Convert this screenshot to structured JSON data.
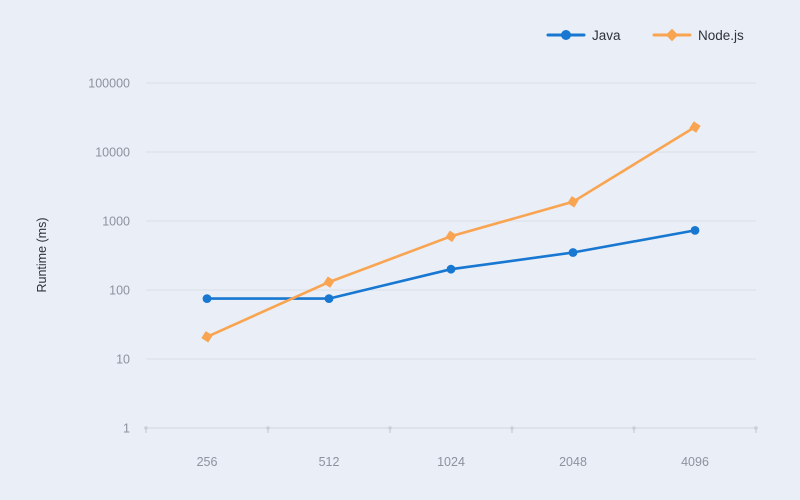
{
  "chart": {
    "background": "#e9eef7",
    "grid_color": "#dde1ea",
    "axis_line_color": "#d6dae4",
    "tick_color": "#c9cedb",
    "axis_label_color": "#8d929e",
    "text_color": "#2e3338",
    "ylabel": "Runtime (ms)"
  },
  "chart_data": {
    "type": "line",
    "title": "",
    "xlabel": "",
    "ylabel": "Runtime (ms)",
    "x_scale": "category",
    "y_scale": "log10",
    "ylim": [
      1,
      100000
    ],
    "y_ticks": [
      1,
      10,
      100,
      1000,
      10000,
      100000
    ],
    "categories": [
      "256",
      "512",
      "1024",
      "2048",
      "4096"
    ],
    "series": [
      {
        "name": "Java",
        "color": "#1777d1",
        "marker": "circle",
        "values": [
          75,
          75,
          200,
          350,
          730
        ]
      },
      {
        "name": "Node.js",
        "color": "#f9a450",
        "marker": "diamond",
        "values": [
          21,
          130,
          600,
          1900,
          23000
        ]
      }
    ],
    "legend": [
      "Java",
      "Node.js"
    ],
    "legend_position": "top-right",
    "grid": "horizontal"
  }
}
